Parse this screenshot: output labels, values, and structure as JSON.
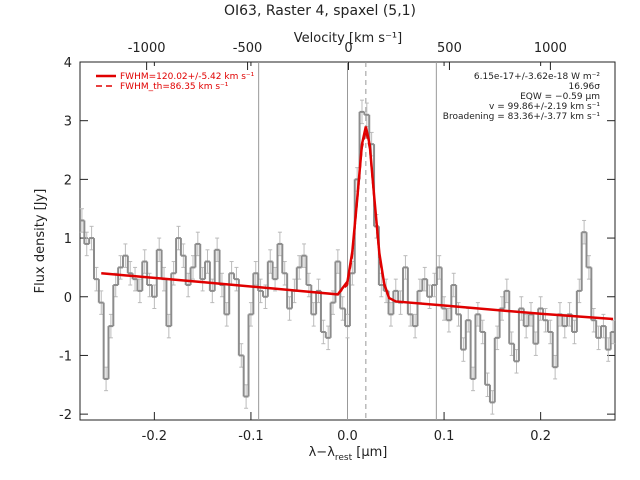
{
  "chart_data": {
    "type": "spectrum",
    "title": "OI63, Raster 4, spaxel (5,1)",
    "x_label": [
      "λ−λ",
      "rest",
      " [μm]"
    ],
    "y_label": "Flux density [Jy]",
    "top_label": "Velocity [km s⁻¹]",
    "xlim": [
      -0.277,
      0.277
    ],
    "xticks": [
      -0.2,
      -0.1,
      {
        "value": 0,
        "label": "0.0"
      },
      0.1,
      0.2
    ],
    "ylim": [
      -2.1,
      4.0
    ],
    "yticks": [
      -2,
      -1,
      0,
      1,
      2,
      3,
      4
    ],
    "vlim": [
      -1330,
      1320
    ],
    "vticks": [
      -1000,
      -500,
      0,
      500,
      1000
    ],
    "vlines": [
      -0.092,
      0,
      0.092
    ],
    "center_line": 0.019,
    "spectrum": {
      "color": "#8c8c8c",
      "error": 0.2,
      "x": [
        -0.275,
        -0.27,
        -0.265,
        -0.26,
        -0.255,
        -0.25,
        -0.245,
        -0.24,
        -0.235,
        -0.23,
        -0.225,
        -0.22,
        -0.215,
        -0.21,
        -0.205,
        -0.2,
        -0.195,
        -0.19,
        -0.185,
        -0.18,
        -0.175,
        -0.17,
        -0.165,
        -0.16,
        -0.155,
        -0.15,
        -0.145,
        -0.14,
        -0.135,
        -0.13,
        -0.125,
        -0.12,
        -0.115,
        -0.11,
        -0.105,
        -0.1,
        -0.095,
        -0.09,
        -0.085,
        -0.08,
        -0.075,
        -0.07,
        -0.065,
        -0.06,
        -0.055,
        -0.05,
        -0.045,
        -0.04,
        -0.035,
        -0.03,
        -0.025,
        -0.02,
        -0.015,
        -0.01,
        -0.005,
        0,
        0.005,
        0.01,
        0.015,
        0.02,
        0.025,
        0.03,
        0.035,
        0.04,
        0.045,
        0.05,
        0.055,
        0.06,
        0.065,
        0.07,
        0.075,
        0.08,
        0.085,
        0.09,
        0.095,
        0.1,
        0.105,
        0.11,
        0.115,
        0.12,
        0.125,
        0.13,
        0.135,
        0.14,
        0.145,
        0.15,
        0.155,
        0.16,
        0.165,
        0.17,
        0.175,
        0.18,
        0.185,
        0.19,
        0.195,
        0.2,
        0.205,
        0.21,
        0.215,
        0.22,
        0.225,
        0.23,
        0.235,
        0.24,
        0.245,
        0.25,
        0.255,
        0.26,
        0.265,
        0.27,
        0.275
      ],
      "values": [
        1.3,
        0.9,
        1.0,
        0.3,
        -0.1,
        -1.4,
        -0.5,
        0.2,
        0.5,
        0.7,
        0.4,
        0.3,
        0.1,
        0.6,
        0.2,
        0.0,
        0.8,
        0.3,
        -0.5,
        0.4,
        1.0,
        0.7,
        0.2,
        0.5,
        0.9,
        0.3,
        0.6,
        0.1,
        0.8,
        0.2,
        -0.3,
        0.4,
        0.3,
        -1.0,
        -1.7,
        -0.3,
        0.4,
        0.1,
        0.0,
        0.6,
        0.3,
        0.9,
        0.4,
        -0.2,
        0.1,
        0.5,
        0.7,
        0.2,
        -0.3,
        0.1,
        -0.6,
        -0.7,
        -0.1,
        0.6,
        -0.2,
        -0.5,
        0.4,
        2.0,
        3.15,
        3.1,
        2.6,
        1.2,
        0.2,
        0.1,
        -0.3,
        0.1,
        -0.1,
        0.5,
        -0.3,
        -0.5,
        0.1,
        0.3,
        0.0,
        0.2,
        0.5,
        -0.2,
        -0.4,
        0.2,
        -0.3,
        -0.9,
        -0.4,
        -1.4,
        -0.3,
        -0.6,
        -1.5,
        -1.8,
        -0.7,
        -0.2,
        0.1,
        -0.8,
        -1.1,
        -0.2,
        -0.5,
        -0.3,
        -0.8,
        -0.2,
        -0.4,
        -0.6,
        -1.2,
        -0.3,
        -0.5,
        -0.3,
        -0.6,
        0.1,
        1.1,
        0.5,
        -0.4,
        -0.7,
        -0.5,
        -0.9,
        -0.6
      ]
    },
    "series": [
      {
        "name": "FWHM=120.02+/-5.42 km s⁻¹",
        "color": "#e00000",
        "dash": false,
        "x": [
          -0.255,
          -0.15,
          -0.05,
          -0.01,
          0,
          0.005,
          0.01,
          0.015,
          0.019,
          0.023,
          0.028,
          0.033,
          0.038,
          0.043,
          0.05,
          0.1,
          0.2,
          0.275
        ],
        "values": [
          0.4,
          0.25,
          0.1,
          0.04,
          0.26,
          0.77,
          1.66,
          2.6,
          2.9,
          2.59,
          1.64,
          0.74,
          0.22,
          -0.02,
          -0.08,
          -0.15,
          -0.29,
          -0.38
        ]
      },
      {
        "name": "FWHM_th=86.35 km s⁻¹",
        "color": "#e00000",
        "dash": true,
        "x": [
          -0.01,
          0,
          0.005,
          0.01,
          0.015,
          0.019,
          0.023,
          0.028,
          0.033,
          0.038,
          0.043
        ],
        "values": [
          0.04,
          0.2,
          0.68,
          1.58,
          2.52,
          2.82,
          2.51,
          1.56,
          0.66,
          0.18,
          -0.03
        ]
      }
    ],
    "annotations": [
      "6.15e-17+/-3.62e-18 W m⁻²",
      "16.96σ",
      "EQW = −0.59 μm",
      "v = 99.86+/-2.19 km s⁻¹",
      "Broadening = 83.36+/-3.77 km s⁻¹"
    ]
  }
}
